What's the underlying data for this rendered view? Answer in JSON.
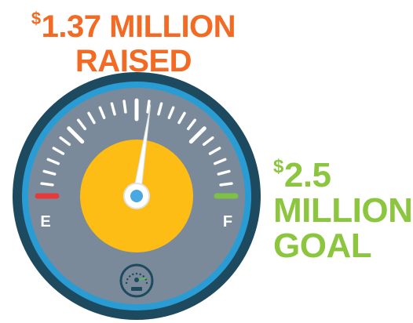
{
  "raised": {
    "currency_symbol": "$",
    "line1_amount": "1.37 MILLION",
    "line2": "RAISED"
  },
  "goal": {
    "currency_symbol": "$",
    "amount": "2.5",
    "line2": "MILLION",
    "line3": "GOAL"
  },
  "gauge": {
    "empty_label": "E",
    "full_label": "F",
    "progress_fraction": 0.548,
    "icon": "speedometer-icon"
  },
  "colors": {
    "raised_text": "#f26a23",
    "goal_text": "#8cc63f",
    "outer_ring": "#1d4a5e",
    "blue_ring": "#2a9cd4",
    "dial_face": "#7a8a9a",
    "hub_disc": "#fdbd15",
    "empty_mark": "#e8393a",
    "full_mark": "#7cc142",
    "tick": "#ffffff",
    "needle": "#ffffff"
  }
}
